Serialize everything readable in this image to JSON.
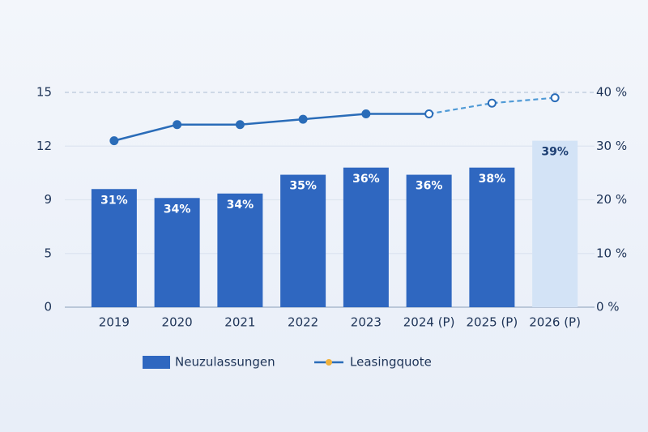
{
  "chart_data": {
    "type": "bar",
    "categories": [
      "2019",
      "2020",
      "2021",
      "2022",
      "2023",
      "2024 (P)",
      "2025 (P)",
      "2026 (P)"
    ],
    "series": [
      {
        "name": "Neuzulassungen",
        "color": "#2f67c0",
        "colors": [
          "#2f67c0",
          "#2f67c0",
          "#2f67c0",
          "#2f67c0",
          "#2f67c0",
          "#2f67c0",
          "#2f67c0",
          "#d3e3f6"
        ],
        "values": [
          9.6,
          9.1,
          9.35,
          10.4,
          10.8,
          10.4,
          10.8,
          12.3
        ]
      },
      {
        "name": "Leasingquote",
        "color": "#2a6cb8",
        "marker_color": "#f0b13c",
        "axis": "y2",
        "values": [
          31,
          34,
          34,
          35,
          36,
          36,
          38,
          39
        ],
        "value_labels": [
          "31%",
          "34%",
          "34%",
          "35%",
          "36%",
          "36%",
          "38%",
          "39%"
        ]
      }
    ],
    "ylim": [
      0,
      15
    ],
    "yticks": [
      0,
      5,
      9,
      12,
      15
    ],
    "y2lim": [
      0,
      40
    ],
    "y2ticks": [
      {
        "value": 0,
        "label": "0 %"
      },
      {
        "value": 10,
        "label": "10 %"
      },
      {
        "value": 20,
        "label": "20 %"
      },
      {
        "value": 30,
        "label": "30 %"
      },
      {
        "value": 40,
        "label": "40 %"
      }
    ],
    "grid": true,
    "legend": "bottom"
  }
}
